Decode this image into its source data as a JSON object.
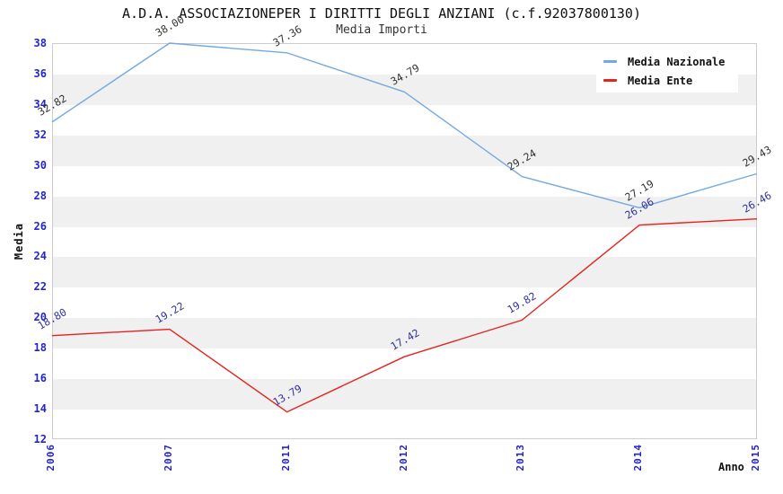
{
  "header": {
    "title": "A.D.A. ASSOCIAZIONEPER I DIRITTI DEGLI ANZIANI (c.f.92037800130)",
    "subtitle": "Media Importi"
  },
  "axes": {
    "y_label": "Media",
    "x_label": "Anno",
    "y_ticks": [
      38,
      36,
      34,
      32,
      30,
      28,
      26,
      24,
      22,
      20,
      18,
      16,
      14,
      12
    ],
    "tick_color": "#2424cc"
  },
  "colors": {
    "band_gray": "#f0f0f0",
    "plot_border": "#cccccc",
    "background": "#ffffff"
  },
  "chart_data": {
    "type": "line",
    "title": "A.D.A. ASSOCIAZIONEPER I DIRITTI DEGLI ANZIANI (c.f.92037800130)",
    "subtitle": "Media Importi",
    "xlabel": "Anno",
    "ylabel": "Media",
    "categories": [
      "2006",
      "2007",
      "2011",
      "2012",
      "2013",
      "2014",
      "2015"
    ],
    "series": [
      {
        "name": "Media Nazionale",
        "color": "#74a9e0",
        "label_color": "#333333",
        "values": [
          32.82,
          38.0,
          37.36,
          34.79,
          29.24,
          27.19,
          29.43
        ]
      },
      {
        "name": "Media Ente",
        "color": "#e42320",
        "label_color": "#32329e",
        "values": [
          18.8,
          19.22,
          13.79,
          17.42,
          19.82,
          26.06,
          26.46
        ]
      }
    ],
    "ylim": [
      12,
      38
    ],
    "y_tick_step": 2,
    "grid": "horizontal-bands",
    "legend_position": "top-right",
    "data_labels": "shown, rotated -30deg, 2 decimals"
  }
}
